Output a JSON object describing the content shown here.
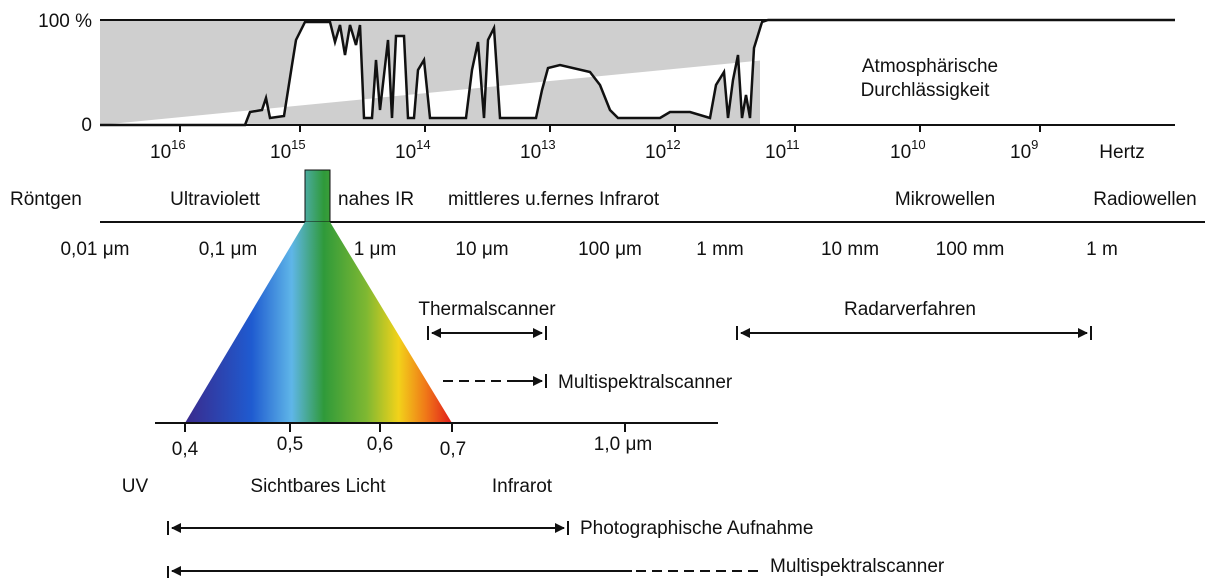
{
  "transmission": {
    "label_100": "100 %",
    "label_0": "0",
    "title_lines": [
      "Atmosphärische",
      "Durchlässigkeit"
    ]
  },
  "frequency": {
    "labels": [
      {
        "base": "10",
        "exp": "16"
      },
      {
        "base": "10",
        "exp": "15"
      },
      {
        "base": "10",
        "exp": "14"
      },
      {
        "base": "10",
        "exp": "13"
      },
      {
        "base": "10",
        "exp": "12"
      },
      {
        "base": "10",
        "exp": "11"
      },
      {
        "base": "10",
        "exp": "10"
      },
      {
        "base": "10",
        "exp": "9"
      }
    ],
    "unit": "Hertz"
  },
  "bands": [
    "Röntgen",
    "Ultraviolett",
    "nahes IR",
    "mittleres u.fernes Infrarot",
    "Mikrowellen",
    "Radiowellen"
  ],
  "wavelengths": [
    "0,01 μm",
    "0,1 μm",
    "1 μm",
    "10 μm",
    "100 μm",
    "1 mm",
    "10 mm",
    "100 mm",
    "1 m"
  ],
  "sensors": {
    "thermal": "Thermalscanner",
    "radar": "Radarverfahren",
    "multispectral_upper": "Multispektralscanner"
  },
  "visible": {
    "ticks": [
      "0,4",
      "0,5",
      "0,6",
      "0,7",
      "1,0 μm"
    ],
    "regions": [
      "UV",
      "Sichtbares Licht",
      "Infrarot"
    ]
  },
  "methods": {
    "photo": "Photographische Aufnahme",
    "multispectral_lower": "Multispektralscanner"
  }
}
